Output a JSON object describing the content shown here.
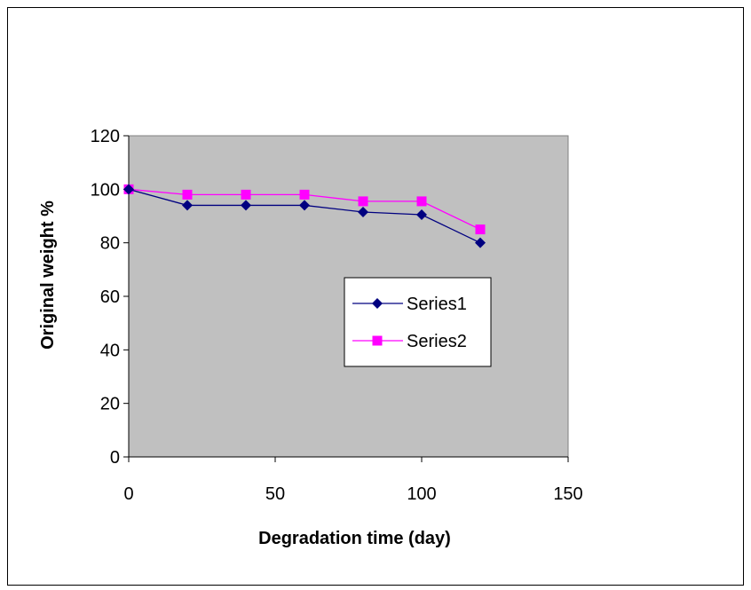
{
  "chart_data": {
    "type": "line",
    "title": "",
    "xlabel": "Degradation time (day)",
    "ylabel": "Original weight %",
    "xlim": [
      0,
      150
    ],
    "ylim": [
      0,
      120
    ],
    "x_ticks": [
      "0",
      "50",
      "100",
      "150"
    ],
    "y_ticks": [
      "0",
      "20",
      "40",
      "60",
      "80",
      "100",
      "120"
    ],
    "x_tick_values": [
      0,
      50,
      100,
      150
    ],
    "y_tick_values": [
      0,
      20,
      40,
      60,
      80,
      100,
      120
    ],
    "grid": false,
    "legend_position": "right",
    "plot_background": "#c0c0c0",
    "series": [
      {
        "name": "Series1",
        "color": "#000080",
        "marker": "diamond",
        "x": [
          0,
          20,
          40,
          60,
          80,
          100,
          120
        ],
        "y": [
          100,
          94,
          94,
          94,
          91.5,
          90.5,
          80
        ]
      },
      {
        "name": "Series2",
        "color": "#ff00ff",
        "marker": "square",
        "x": [
          0,
          20,
          40,
          60,
          80,
          100,
          120
        ],
        "y": [
          100,
          98,
          98,
          98,
          95.5,
          95.5,
          85
        ]
      }
    ]
  }
}
